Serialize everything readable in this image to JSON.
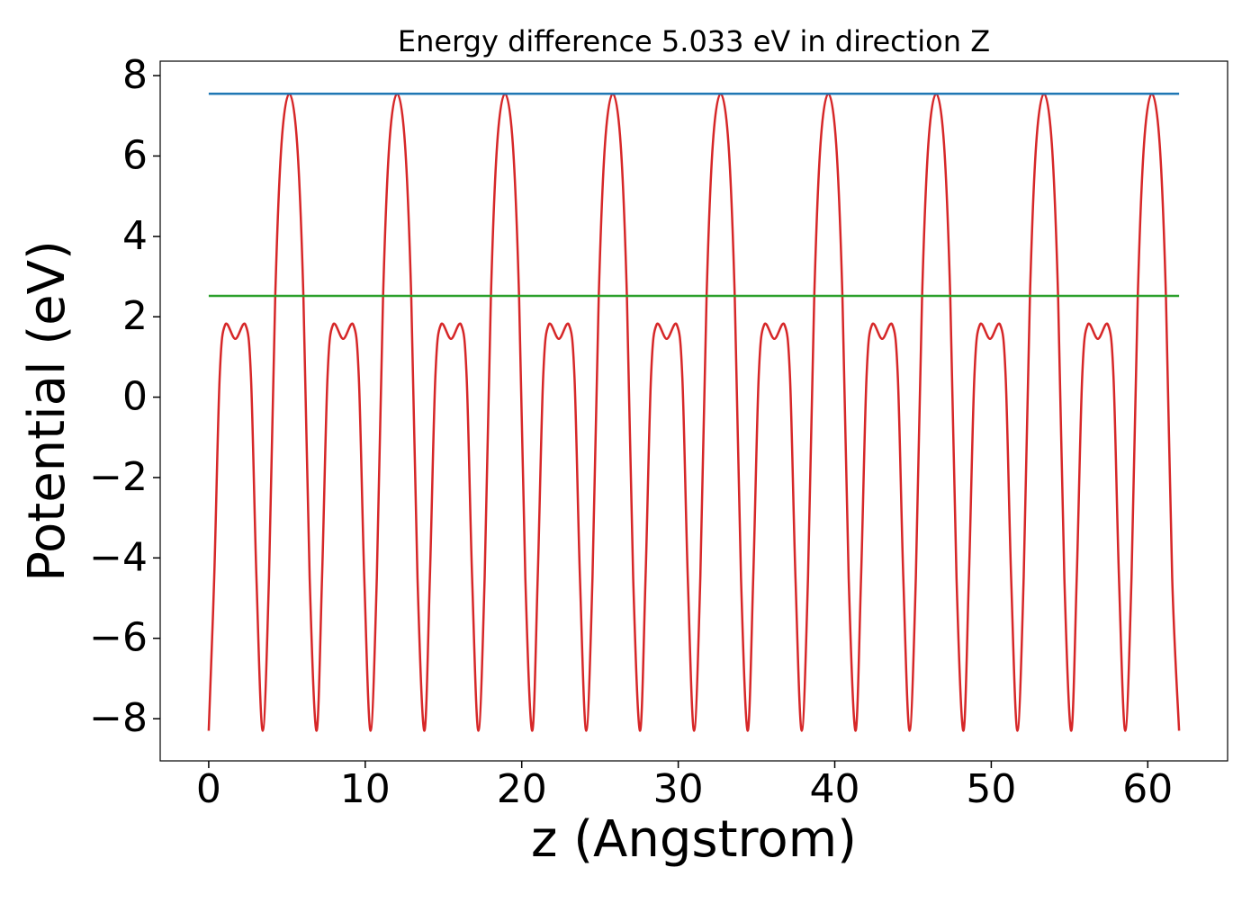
{
  "chart_data": {
    "type": "line",
    "title": "Energy difference 5.033 eV in direction Z",
    "xlabel": "z (Angstrom)",
    "ylabel": "Potential (eV)",
    "xlim": [
      -3.1,
      65.1
    ],
    "ylim": [
      -9.05,
      8.36
    ],
    "xticks": [
      0,
      10,
      20,
      30,
      40,
      50,
      60
    ],
    "yticks": [
      {
        "value": -8,
        "label": "−8"
      },
      {
        "value": -6,
        "label": "−6"
      },
      {
        "value": -4,
        "label": "−4"
      },
      {
        "value": -2,
        "label": "−2"
      },
      0,
      2,
      4,
      6,
      8
    ],
    "grid": false,
    "series": [
      {
        "color": "#d62728",
        "x": [
          0,
          0.35,
          0.7,
          1.05,
          1.7,
          2.35,
          2.7,
          3.05,
          3.45,
          3.85,
          4.25,
          4.65,
          5.15,
          5.65,
          6.05,
          6.45,
          6.89,
          7.24,
          7.59,
          7.94,
          8.59,
          9.24,
          9.59,
          9.94,
          10.34,
          10.74,
          11.14,
          11.54,
          12.04,
          12.54,
          12.94,
          13.34,
          13.78,
          14.13,
          14.48,
          14.83,
          15.48,
          16.13,
          16.48,
          16.83,
          17.23,
          17.63,
          18.03,
          18.43,
          18.93,
          19.43,
          19.83,
          20.23,
          20.67,
          21.02,
          21.37,
          21.72,
          22.37,
          23.02,
          23.37,
          23.72,
          24.12,
          24.52,
          24.92,
          25.32,
          25.82,
          26.32,
          26.72,
          27.12,
          27.56,
          27.91,
          28.26,
          28.61,
          29.26,
          29.91,
          30.26,
          30.61,
          31.01,
          31.41,
          31.81,
          32.21,
          32.71,
          33.21,
          33.61,
          34.01,
          34.44,
          34.79,
          35.14,
          35.49,
          36.14,
          36.79,
          37.14,
          37.49,
          37.89,
          38.29,
          38.69,
          39.09,
          39.59,
          40.09,
          40.49,
          40.89,
          41.33,
          41.68,
          42.03,
          42.38,
          43.03,
          43.68,
          44.03,
          44.38,
          44.78,
          45.18,
          45.58,
          45.98,
          46.48,
          46.98,
          47.38,
          47.78,
          48.22,
          48.57,
          48.92,
          49.27,
          49.92,
          50.57,
          50.92,
          51.27,
          51.67,
          52.07,
          52.47,
          52.87,
          53.37,
          53.87,
          54.27,
          54.67,
          55.11,
          55.46,
          55.81,
          56.16,
          56.81,
          57.46,
          57.81,
          58.16,
          58.56,
          58.96,
          59.36,
          59.76,
          60.26,
          60.76,
          61.16,
          61.56,
          62
        ],
        "values": [
          -8.3,
          -4.5,
          0.5,
          1.8,
          1.45,
          1.8,
          0.5,
          -4.5,
          -8.3,
          -4.5,
          2.5,
          6.3,
          7.55,
          6.3,
          2.5,
          -4.5,
          -8.3,
          -4.5,
          0.5,
          1.8,
          1.45,
          1.8,
          0.5,
          -4.5,
          -8.3,
          -4.5,
          2.5,
          6.3,
          7.55,
          6.3,
          2.5,
          -4.5,
          -8.3,
          -4.5,
          0.5,
          1.8,
          1.45,
          1.8,
          0.5,
          -4.5,
          -8.3,
          -4.5,
          2.5,
          6.3,
          7.55,
          6.3,
          2.5,
          -4.5,
          -8.3,
          -4.5,
          0.5,
          1.8,
          1.45,
          1.8,
          0.5,
          -4.5,
          -8.3,
          -4.5,
          2.5,
          6.3,
          7.55,
          6.3,
          2.5,
          -4.5,
          -8.3,
          -4.5,
          0.5,
          1.8,
          1.45,
          1.8,
          0.5,
          -4.5,
          -8.3,
          -4.5,
          2.5,
          6.3,
          7.55,
          6.3,
          2.5,
          -4.5,
          -8.3,
          -4.5,
          0.5,
          1.8,
          1.45,
          1.8,
          0.5,
          -4.5,
          -8.3,
          -4.5,
          2.5,
          6.3,
          7.55,
          6.3,
          2.5,
          -4.5,
          -8.3,
          -4.5,
          0.5,
          1.8,
          1.45,
          1.8,
          0.5,
          -4.5,
          -8.3,
          -4.5,
          2.5,
          6.3,
          7.55,
          6.3,
          2.5,
          -4.5,
          -8.3,
          -4.5,
          0.5,
          1.8,
          1.45,
          1.8,
          0.5,
          -4.5,
          -8.3,
          -4.5,
          2.5,
          6.3,
          7.55,
          6.3,
          2.5,
          -4.5,
          -8.3,
          -4.5,
          0.5,
          1.8,
          1.45,
          1.8,
          0.5,
          -4.5,
          -8.3,
          -4.5,
          2.5,
          6.3,
          7.55,
          6.3,
          2.5,
          -4.5,
          -8.3
        ]
      },
      {
        "color": "#1f77b4",
        "x": [
          0,
          62
        ],
        "values": [
          7.55,
          7.55
        ]
      },
      {
        "color": "#2ca02c",
        "x": [
          0,
          62
        ],
        "values": [
          2.52,
          2.52
        ]
      }
    ]
  }
}
